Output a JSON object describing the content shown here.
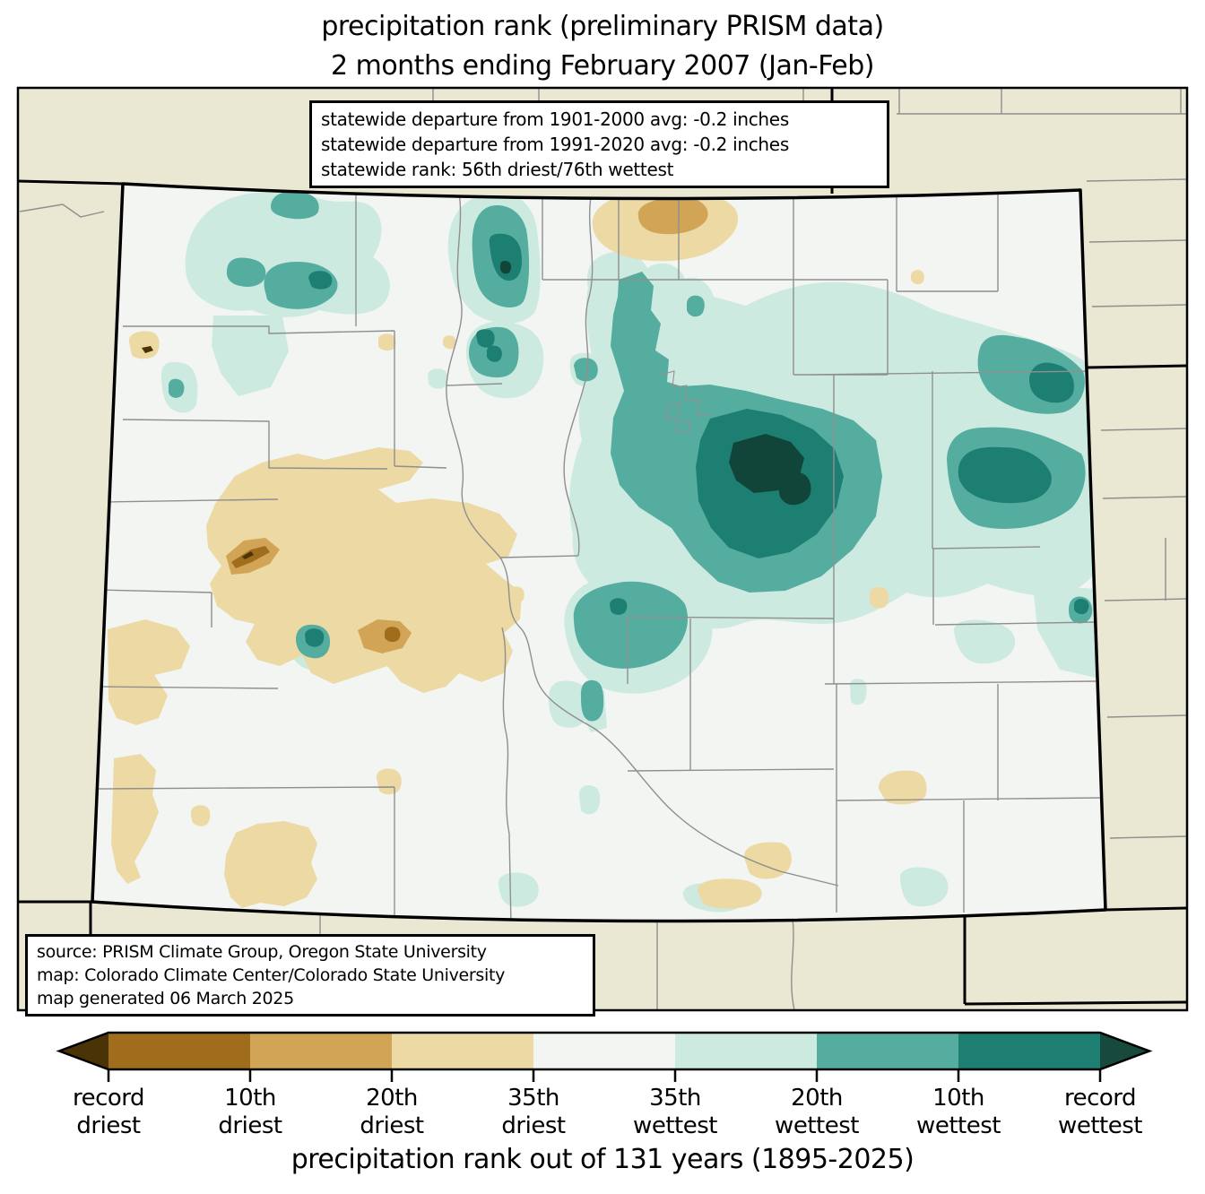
{
  "title": {
    "line1": "precipitation rank (preliminary PRISM data)",
    "line2": "2 months ending February 2007 (Jan-Feb)"
  },
  "stats_box": {
    "line1": "statewide departure from 1901-2000 avg: -0.2 inches",
    "line2": "statewide departure from 1991-2020 avg: -0.2 inches",
    "line3": "statewide rank: 56th driest/76th wettest"
  },
  "source_box": {
    "line1": "source: PRISM Climate Group, Oregon State University",
    "line2": "map: Colorado Climate Center/Colorado State University",
    "line3": "map generated 06 March 2025"
  },
  "caption": "precipitation rank out of 131 years (1895-2025)",
  "palette": {
    "outside_state": "#eae7d2",
    "state_fill": "#f2f5f1",
    "county_line": "#8f8f8f",
    "rank_colors": {
      "recdriest": "#4a3306",
      "driest10": "#a06d1d",
      "driest20": "#d2a455",
      "driest35": "#ecd9a4",
      "nearnormal": "#f2f5f1",
      "wettest35": "#cdeae1",
      "wettest20": "#55ada0",
      "wettest10": "#1d7e72",
      "recwettest": "#124539"
    }
  },
  "colorbar": {
    "arrow_left_color": "#4a3306",
    "arrow_right_color": "#17493d",
    "segment_colors": [
      "#a06d1d",
      "#d2a455",
      "#ecd9a4",
      "#f2f5f1",
      "#cdeae1",
      "#55ada0",
      "#1d7e72"
    ],
    "tick_labels": [
      [
        "record",
        "driest"
      ],
      [
        "10th",
        "driest"
      ],
      [
        "20th",
        "driest"
      ],
      [
        "35th",
        "driest"
      ],
      [
        "35th",
        "wettest"
      ],
      [
        "20th",
        "wettest"
      ],
      [
        "10th",
        "wettest"
      ],
      [
        "record",
        "wettest"
      ]
    ]
  }
}
